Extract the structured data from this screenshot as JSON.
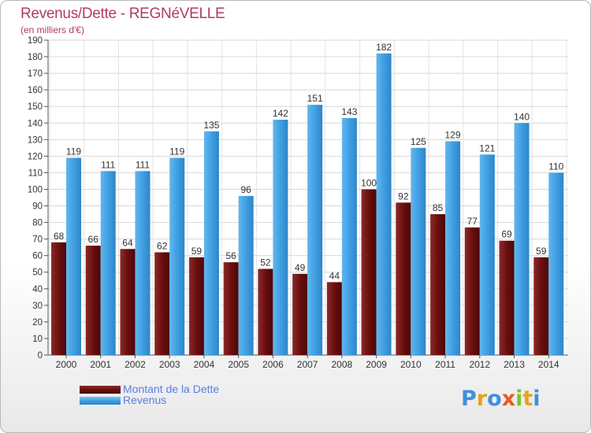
{
  "title": "Revenus/Dette - REGNéVELLE",
  "subtitle": "(en milliers d'€)",
  "legend": {
    "debt_label": "Montant de la Dette",
    "revenue_label": "Revenus"
  },
  "logo_text": "Proxiti",
  "colors": {
    "debt": "#6b0f0f",
    "revenue": "#3f9fe2",
    "title": "#b03a6a",
    "legend_text": "#5a7fe0"
  },
  "chart_data": {
    "type": "bar",
    "categories": [
      "2000",
      "2001",
      "2002",
      "2003",
      "2004",
      "2005",
      "2006",
      "2007",
      "2008",
      "2009",
      "2010",
      "2011",
      "2012",
      "2013",
      "2014"
    ],
    "series": [
      {
        "name": "Montant de la Dette",
        "values": [
          68,
          66,
          64,
          62,
          59,
          56,
          52,
          49,
          44,
          100,
          92,
          85,
          77,
          69,
          59
        ]
      },
      {
        "name": "Revenus",
        "values": [
          119,
          111,
          111,
          119,
          135,
          96,
          142,
          151,
          143,
          182,
          125,
          129,
          121,
          140,
          110
        ]
      }
    ],
    "ylim": [
      0,
      190
    ],
    "ytick_step": 10,
    "grid": true,
    "legend_position": "bottom-left"
  }
}
